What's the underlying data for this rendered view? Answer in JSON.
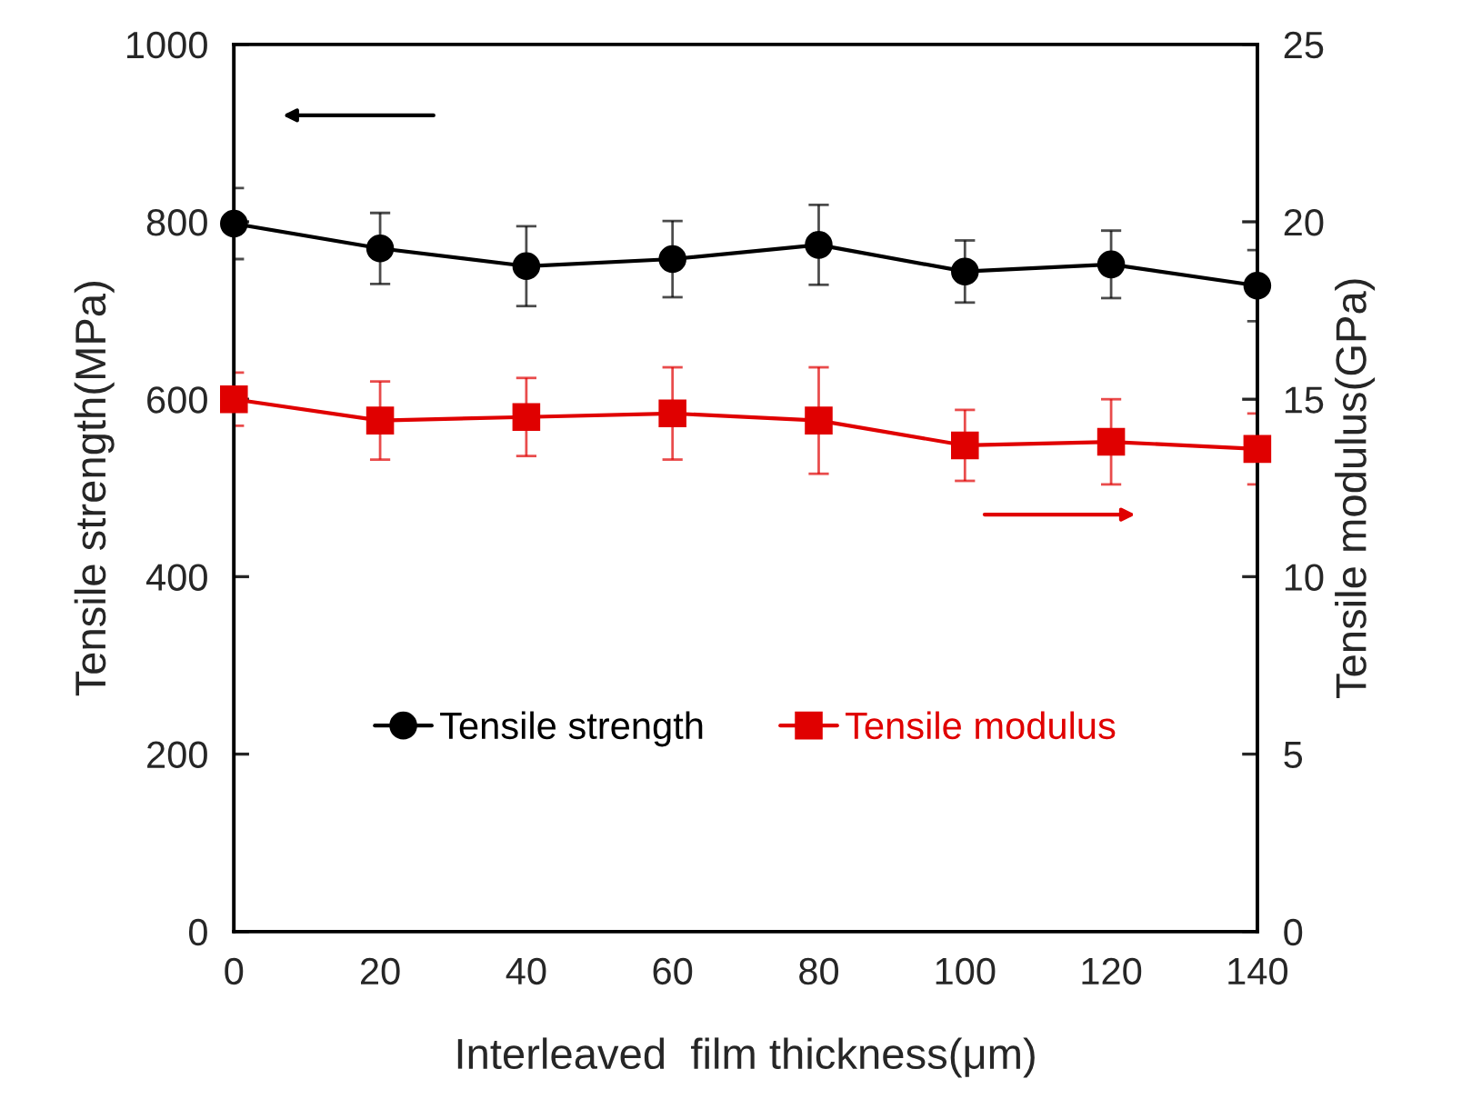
{
  "chart_data": {
    "type": "line",
    "xlabel": "Interleaved  film thickness(μm)",
    "ylabel": "Tensile strength(MPa)",
    "y2label": "Tensile modulus(GPa)",
    "x": [
      0,
      20,
      40,
      60,
      80,
      100,
      120,
      140
    ],
    "xlim": [
      0,
      140
    ],
    "xticks": [
      0,
      20,
      40,
      60,
      80,
      100,
      120,
      140
    ],
    "ylim": [
      0,
      1000
    ],
    "yticks": [
      0,
      200,
      400,
      600,
      800,
      1000
    ],
    "y2lim": [
      0,
      25
    ],
    "y2ticks": [
      0,
      5,
      10,
      15,
      20,
      25
    ],
    "grid": false,
    "legend": "bottom",
    "line_style": "solid",
    "series": [
      {
        "name": "Tensile strength",
        "color": "#000000",
        "marker": "circle",
        "values": [
          798,
          770,
          750,
          758,
          774,
          744,
          752,
          728
        ],
        "errors": [
          40,
          40,
          45,
          43,
          45,
          35,
          38,
          40
        ]
      },
      {
        "name": "Tensile modulus",
        "color": "#e00000",
        "marker": "square",
        "axis": "y2",
        "values": [
          15.0,
          14.4,
          14.5,
          14.6,
          14.4,
          13.7,
          13.8,
          13.6
        ],
        "errors": [
          0.75,
          1.1,
          1.1,
          1.3,
          1.5,
          1.0,
          1.2,
          1.0
        ]
      }
    ]
  }
}
